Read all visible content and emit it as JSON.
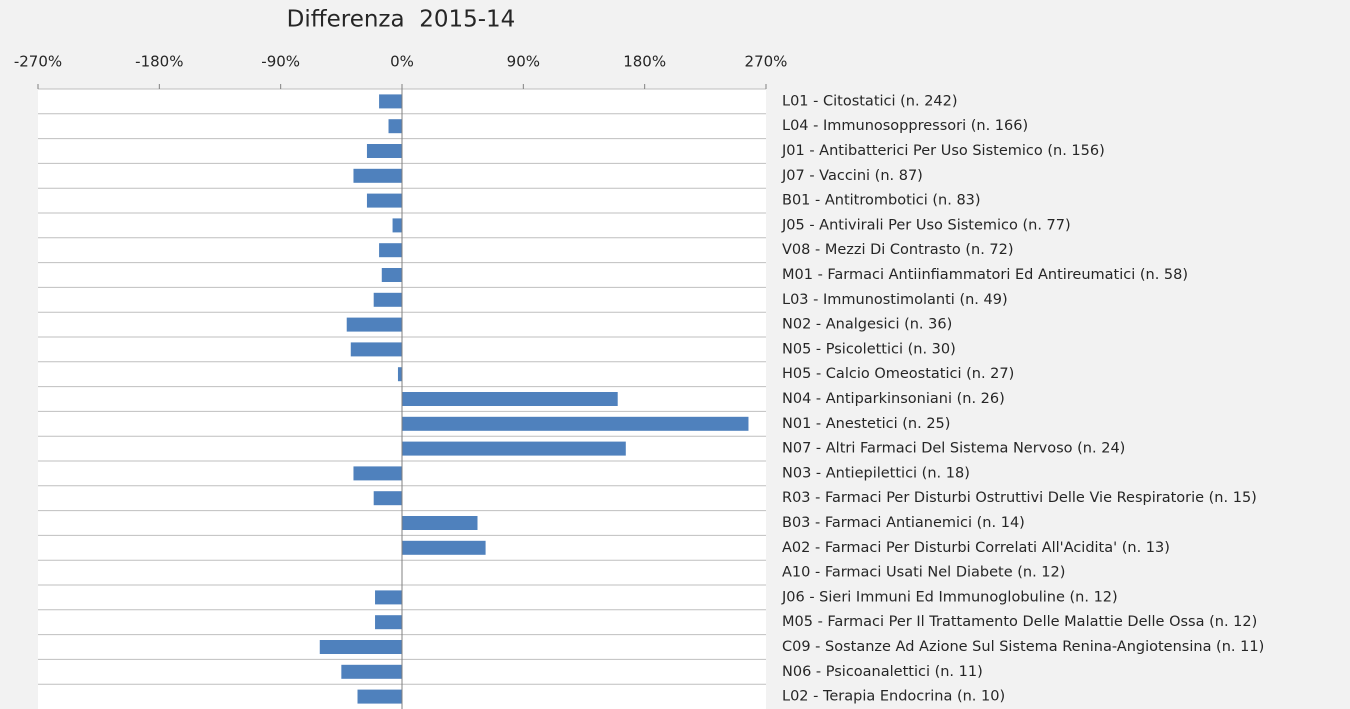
{
  "chart_data": {
    "type": "barh",
    "title": "Differenza  2015-14",
    "categories": [
      "L01 - Citostatici (n. 242)",
      "L04 - Immunosoppressori (n. 166)",
      "J01 - Antibatterici Per Uso Sistemico (n. 156)",
      "J07 - Vaccini (n. 87)",
      "B01 - Antitrombotici (n. 83)",
      "J05 - Antivirali Per Uso Sistemico (n. 77)",
      "V08 - Mezzi Di Contrasto (n. 72)",
      "M01 - Farmaci Antiinfiammatori Ed Antireumatici (n. 58)",
      "L03 - Immunostimolanti (n. 49)",
      "N02 - Analgesici (n. 36)",
      "N05 - Psicolettici (n. 30)",
      "H05 - Calcio Omeostatici (n. 27)",
      "N04 - Antiparkinsoniani (n. 26)",
      "N01 - Anestetici (n. 25)",
      "N07 - Altri Farmaci Del Sistema Nervoso (n. 24)",
      "N03 - Antiepilettici (n. 18)",
      "R03 - Farmaci Per Disturbi Ostruttivi Delle Vie Respiratorie (n. 15)",
      "B03 - Farmaci Antianemici (n. 14)",
      "A02 - Farmaci Per Disturbi Correlati All'Acidita' (n. 13)",
      "A10 - Farmaci Usati Nel Diabete (n. 12)",
      "J06 - Sieri Immuni Ed Immunoglobuline (n. 12)",
      "M05 - Farmaci Per Il Trattamento Delle Malattie Delle Ossa (n. 12)",
      "C09 - Sostanze Ad Azione Sul Sistema Renina-Angiotensina (n. 11)",
      "N06 - Psicoanalettici (n. 11)",
      "L02 - Terapia Endocrina (n. 10)"
    ],
    "values": [
      -17,
      -10,
      -26,
      -36,
      -26,
      -7,
      -17,
      -15,
      -21,
      -41,
      -38,
      -3,
      160,
      257,
      166,
      -36,
      -21,
      56,
      62,
      0,
      -20,
      -20,
      -61,
      -45,
      -33
    ],
    "color": "#4f81bd",
    "xlim": [
      -270,
      270
    ],
    "xticks": [
      {
        "value": -270,
        "label": "-270%"
      },
      {
        "value": -180,
        "label": "-180%"
      },
      {
        "value": -90,
        "label": "-90%"
      },
      {
        "value": 0,
        "label": "0%"
      },
      {
        "value": 90,
        "label": "90%"
      },
      {
        "value": 180,
        "label": "180%"
      },
      {
        "value": 270,
        "label": "270%"
      }
    ]
  }
}
